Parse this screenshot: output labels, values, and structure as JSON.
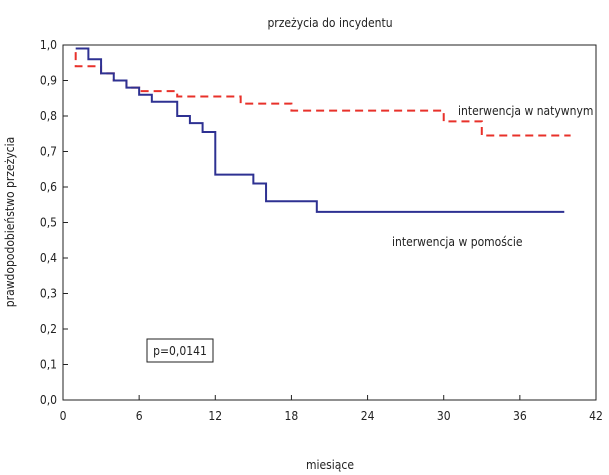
{
  "chart_data": {
    "type": "line",
    "step": true,
    "title": "przeżycia do incydentu",
    "xlabel": "miesiące",
    "ylabel": "prawdopodobieństwo przeżycia",
    "xlim": [
      0,
      42
    ],
    "ylim": [
      0,
      1.0
    ],
    "xticks": [
      0,
      6,
      12,
      18,
      24,
      30,
      36,
      42
    ],
    "yticks": [
      "0,0",
      "0,1",
      "0,2",
      "0,3",
      "0,4",
      "0,5",
      "0,6",
      "0,7",
      "0,8",
      "0,9",
      "1,0"
    ],
    "grid": false,
    "series": [
      {
        "name": "interwencja w natywnym",
        "color": "#e8312a",
        "dash": true,
        "x": [
          1,
          1,
          3,
          4,
          5,
          6,
          9,
          14,
          18,
          30,
          33,
          40
        ],
        "y": [
          0.98,
          0.94,
          0.92,
          0.9,
          0.88,
          0.87,
          0.855,
          0.835,
          0.815,
          0.785,
          0.745,
          0.745
        ]
      },
      {
        "name": "interwencja w pomoście",
        "color": "#2e3192",
        "dash": false,
        "x": [
          1,
          2,
          3,
          4,
          5,
          6,
          7,
          9,
          10,
          11,
          12,
          15,
          16,
          20,
          39.5
        ],
        "y": [
          0.99,
          0.96,
          0.92,
          0.9,
          0.88,
          0.86,
          0.84,
          0.8,
          0.78,
          0.755,
          0.635,
          0.61,
          0.56,
          0.53,
          0.53
        ]
      }
    ],
    "annotation": "p=0,0141"
  }
}
